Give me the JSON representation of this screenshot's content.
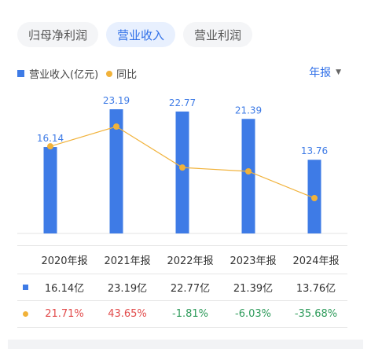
{
  "tabs": [
    {
      "label": "归母净利润",
      "active": false
    },
    {
      "label": "营业收入",
      "active": true
    },
    {
      "label": "营业利润",
      "active": false
    }
  ],
  "legend": {
    "bar_label": "营业收入(亿元)",
    "line_label": "同比"
  },
  "period_selector": {
    "label": "年报"
  },
  "colors": {
    "bar": "#3e7be6",
    "line": "#f1b23a",
    "active_tab_text": "#2f6fe8",
    "positive": "#e24b4b",
    "negative": "#2e9b5b"
  },
  "chart_data": {
    "type": "bar",
    "categories": [
      "2020年报",
      "2021年报",
      "2022年报",
      "2023年报",
      "2024年报"
    ],
    "series": [
      {
        "name": "营业收入(亿元)",
        "type": "bar",
        "values": [
          16.14,
          23.19,
          22.77,
          21.39,
          13.76
        ],
        "labels": [
          "16.14",
          "23.19",
          "22.77",
          "21.39",
          "13.76"
        ]
      },
      {
        "name": "同比",
        "type": "line",
        "values": [
          21.71,
          43.65,
          -1.81,
          -6.03,
          -35.68
        ]
      }
    ],
    "grid": false
  },
  "table": {
    "headers": [
      "2020年报",
      "2021年报",
      "2022年报",
      "2023年报",
      "2024年报"
    ],
    "revenue_row": [
      "16.14亿",
      "23.19亿",
      "22.77亿",
      "21.39亿",
      "13.76亿"
    ],
    "yoy_row": [
      "21.71%",
      "43.65%",
      "-1.81%",
      "-6.03%",
      "-35.68%"
    ]
  }
}
